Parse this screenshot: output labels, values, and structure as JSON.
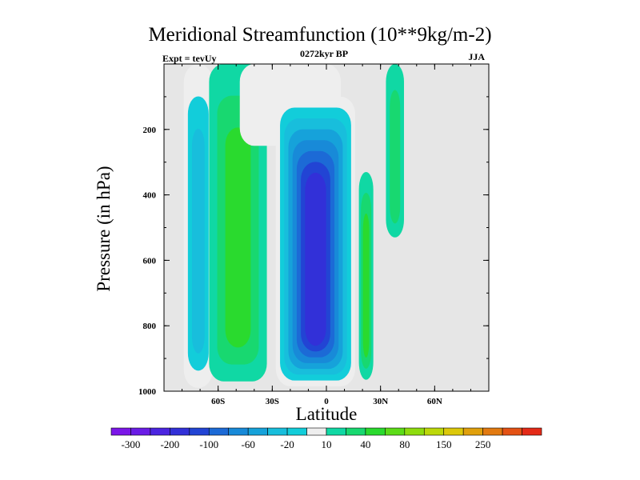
{
  "chart_data": {
    "type": "heatmap",
    "title": "Meridional Streamfunction (10**9kg/m-2)",
    "left_label": "Expt = tevUy",
    "center_label": "0272kyr BP",
    "right_label": "JJA",
    "xlabel": "Latitude",
    "ylabel": "Pressure (in hPa)",
    "xlim": [
      -90,
      90
    ],
    "ylim": [
      1000,
      0
    ],
    "x_ticks": [
      {
        "value": -60,
        "label": "60S"
      },
      {
        "value": -30,
        "label": "30S"
      },
      {
        "value": 0,
        "label": "0"
      },
      {
        "value": 30,
        "label": "30N"
      },
      {
        "value": 60,
        "label": "60N"
      }
    ],
    "y_ticks": [
      {
        "value": 200,
        "label": "200"
      },
      {
        "value": 400,
        "label": "400"
      },
      {
        "value": 600,
        "label": "600"
      },
      {
        "value": 800,
        "label": "800"
      },
      {
        "value": 1000,
        "label": "1000"
      }
    ],
    "missing_color": "#e6e6e6",
    "colorbar": {
      "levels": [
        -300,
        -250,
        -200,
        -150,
        -100,
        -80,
        -60,
        -40,
        -20,
        -10,
        10,
        20,
        40,
        60,
        80,
        100,
        150,
        200,
        250,
        300
      ],
      "shown_labels": [
        "-300",
        "-200",
        "-100",
        "-60",
        "-20",
        "10",
        "40",
        "80",
        "150",
        "250"
      ],
      "colors": [
        "#7b16e8",
        "#6a1ce6",
        "#4b24e0",
        "#3230d8",
        "#2244d4",
        "#1c6ad6",
        "#188ad8",
        "#16a2da",
        "#18bedc",
        "#12cdda",
        "#eeeeee",
        "#10d8a4",
        "#18d870",
        "#2ada2e",
        "#5cdc18",
        "#8edc0e",
        "#bcd80a",
        "#dcc80a",
        "#e0a00c",
        "#e27a10",
        "#e45214",
        "#e42a18"
      ]
    },
    "cells": [
      {
        "name": "SH outer cell",
        "lat": [
          -79,
          -63
        ],
        "p": [
          0,
          990
        ],
        "levels": [
          -10,
          -20,
          -40
        ]
      },
      {
        "name": "SH Ferrel cell",
        "lat": [
          -65,
          -33
        ],
        "p": [
          0,
          970
        ],
        "levels": [
          10,
          20,
          40
        ]
      },
      {
        "name": "Upper gap strip",
        "lat": [
          -48,
          8
        ],
        "p": [
          0,
          250
        ],
        "levels": [
          -10
        ]
      },
      {
        "name": "Hadley cell",
        "lat": [
          -28,
          16
        ],
        "p": [
          100,
          985
        ],
        "levels": [
          -10,
          -20,
          -40,
          -60,
          -80,
          -100,
          -150,
          -200
        ]
      },
      {
        "name": "NH subtropical cell",
        "lat": [
          18,
          26
        ],
        "p": [
          330,
          965
        ],
        "levels": [
          10,
          20,
          40
        ]
      },
      {
        "name": "NH high-latitude strip",
        "lat": [
          33,
          43
        ],
        "p": [
          0,
          530
        ],
        "levels": [
          10,
          20
        ]
      }
    ]
  }
}
